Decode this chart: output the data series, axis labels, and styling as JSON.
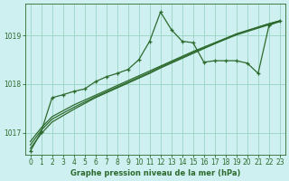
{
  "title": "Graphe pression niveau de la mer (hPa)",
  "background_color": "#cef0f0",
  "grid_color": "#a0d8c8",
  "line_color": "#2d6a2d",
  "xlim": [
    -0.5,
    23.5
  ],
  "ylim": [
    1016.55,
    1019.65
  ],
  "yticks": [
    1017,
    1018,
    1019
  ],
  "xticks": [
    0,
    1,
    2,
    3,
    4,
    5,
    6,
    7,
    8,
    9,
    10,
    11,
    12,
    13,
    14,
    15,
    16,
    17,
    18,
    19,
    20,
    21,
    22,
    23
  ],
  "lines": [
    {
      "y": [
        1016.68,
        1016.98,
        1017.22,
        1017.35,
        1017.48,
        1017.6,
        1017.72,
        1017.82,
        1017.92,
        1018.02,
        1018.12,
        1018.22,
        1018.33,
        1018.43,
        1018.53,
        1018.63,
        1018.73,
        1018.83,
        1018.93,
        1019.03,
        1019.1,
        1019.17,
        1019.24,
        1019.3
      ],
      "marker": false,
      "lw": 0.9
    },
    {
      "y": [
        1016.75,
        1017.05,
        1017.28,
        1017.4,
        1017.52,
        1017.63,
        1017.74,
        1017.84,
        1017.94,
        1018.04,
        1018.14,
        1018.24,
        1018.35,
        1018.45,
        1018.55,
        1018.65,
        1018.74,
        1018.83,
        1018.92,
        1019.01,
        1019.08,
        1019.15,
        1019.22,
        1019.28
      ],
      "marker": false,
      "lw": 0.9
    },
    {
      "y": [
        1016.82,
        1017.1,
        1017.33,
        1017.45,
        1017.57,
        1017.67,
        1017.77,
        1017.87,
        1017.97,
        1018.07,
        1018.17,
        1018.27,
        1018.37,
        1018.47,
        1018.57,
        1018.67,
        1018.76,
        1018.85,
        1018.94,
        1019.03,
        1019.1,
        1019.17,
        1019.24,
        1019.3
      ],
      "marker": false,
      "lw": 0.9
    },
    {
      "y": [
        1016.62,
        1017.02,
        1017.72,
        1017.78,
        1017.85,
        1017.9,
        1018.05,
        1018.15,
        1018.22,
        1018.3,
        1018.5,
        1018.88,
        1019.48,
        1019.12,
        1018.88,
        1018.85,
        1018.45,
        1018.48,
        1018.48,
        1018.48,
        1018.43,
        1018.22,
        1019.2,
        1019.3
      ],
      "marker": true,
      "lw": 0.9
    }
  ]
}
